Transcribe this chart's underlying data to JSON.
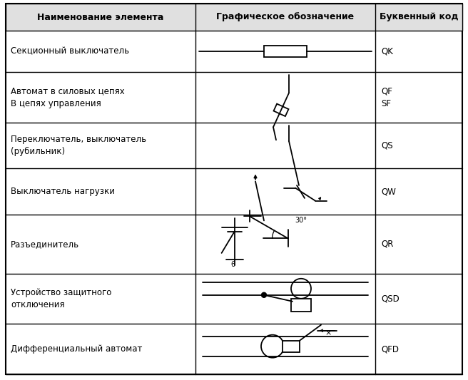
{
  "col_headers": [
    "Наименование элемента",
    "Графическое обозначение",
    "Буквенный код"
  ],
  "rows": [
    {
      "name": "Секционный выключатель",
      "code": "QK"
    },
    {
      "name": "Автомат в силовых цепях\nВ цепях управления",
      "code": "QF\nSF"
    },
    {
      "name": "Переключатель, выключатель\n(рубильник)",
      "code": "QS"
    },
    {
      "name": "Выключатель нагрузки",
      "code": "QW"
    },
    {
      "name": "Разъединитель",
      "code": "QR"
    },
    {
      "name": "Устройство защитного\nотключения",
      "code": "QSD"
    },
    {
      "name": "Дифференциальный автомат",
      "code": "QFD"
    }
  ],
  "bg_color": "#ffffff",
  "header_bg": "#e0e0e0",
  "line_color": "#000000",
  "font_size": 8.5,
  "header_font_size": 9
}
